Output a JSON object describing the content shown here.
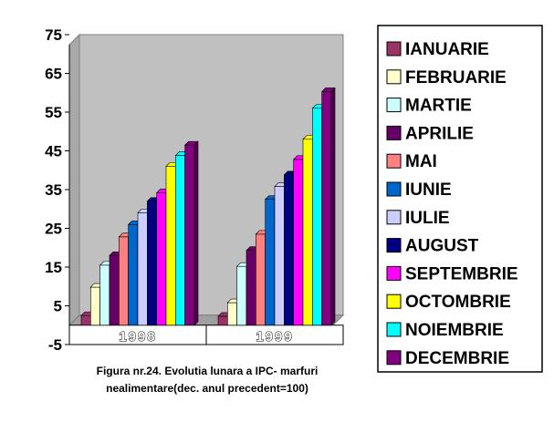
{
  "caption": "Figura nr.24. Evolutia lunara a IPC- marfuri nealimentare(dec. anul precedent=100)",
  "chart_data": {
    "type": "bar",
    "title": "",
    "xlabel": "",
    "ylabel": "",
    "ylim": [
      -5,
      75
    ],
    "yticks": [
      75,
      65,
      55,
      45,
      35,
      25,
      15,
      5,
      -5
    ],
    "grid": false,
    "legend_position": "right",
    "plot_background": "#c0c0c0",
    "categories": [
      "1998",
      "1999"
    ],
    "series": [
      {
        "name": "IANUARIE",
        "color": "#993366",
        "values": [
          2.5,
          2.3
        ]
      },
      {
        "name": "FEBRUARIE",
        "color": "#ffffcc",
        "values": [
          9.8,
          5.8
        ]
      },
      {
        "name": "MARTIE",
        "color": "#ccffff",
        "values": [
          15.5,
          15.2
        ]
      },
      {
        "name": "APRILIE",
        "color": "#660066",
        "values": [
          18.0,
          19.3
        ]
      },
      {
        "name": "MAI",
        "color": "#ff8080",
        "values": [
          22.8,
          23.5
        ]
      },
      {
        "name": "IUNIE",
        "color": "#0066cc",
        "values": [
          26.0,
          32.5
        ]
      },
      {
        "name": "IULIE",
        "color": "#ccccff",
        "values": [
          29.0,
          35.8
        ]
      },
      {
        "name": "AUGUST",
        "color": "#000080",
        "values": [
          32.0,
          38.8
        ]
      },
      {
        "name": "SEPTEMBRIE",
        "color": "#ff00ff",
        "values": [
          34.2,
          42.8
        ]
      },
      {
        "name": "OCTOMBRIE",
        "color": "#ffff00",
        "values": [
          41.0,
          48.0
        ]
      },
      {
        "name": "NOIEMBRIE",
        "color": "#00ffff",
        "values": [
          43.8,
          56.0
        ]
      },
      {
        "name": "DECEMBRIE",
        "color": "#800080",
        "values": [
          46.5,
          60.3
        ]
      }
    ]
  }
}
